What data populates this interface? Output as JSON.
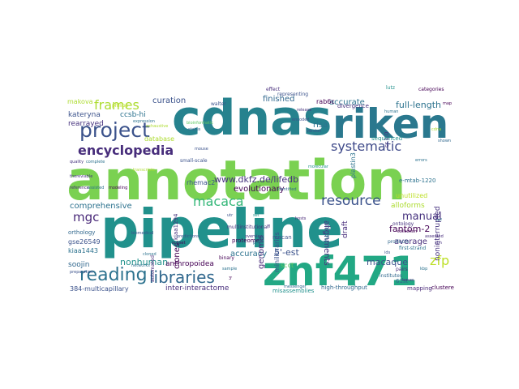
{
  "colors": {
    "background": "#ffffff",
    "palette": [
      "#440154",
      "#472d7b",
      "#3b528b",
      "#2c728e",
      "#21918c",
      "#28ae80",
      "#5ec962",
      "#addc30",
      "#fde725"
    ]
  },
  "words": [
    {
      "text": "annotation",
      "color": "#7ad151"
    },
    {
      "text": "pipeline",
      "color": "#21918c"
    },
    {
      "text": "cdnas",
      "color": "#26828e"
    },
    {
      "text": "riken",
      "color": "#2a788e"
    },
    {
      "text": "znf471",
      "color": "#22a884"
    },
    {
      "text": "project",
      "color": "#3b528b"
    },
    {
      "text": "reading",
      "color": "#2c728e"
    },
    {
      "text": "libraries",
      "color": "#31688e"
    },
    {
      "text": "encyclopedia",
      "color": "#472d7b"
    },
    {
      "text": "systematic",
      "color": "#3e4989"
    },
    {
      "text": "frames",
      "color": "#addc30"
    },
    {
      "text": "macaca",
      "color": "#35b779"
    },
    {
      "text": "resource",
      "color": "#3b528b"
    },
    {
      "text": "manual",
      "color": "#46327e"
    },
    {
      "text": "mgc",
      "color": "#482878"
    },
    {
      "text": "zfp",
      "color": "#bddf26"
    },
    {
      "text": "www.dkfz.de/lifedb",
      "color": "#46327e"
    },
    {
      "text": "full-length",
      "color": "#2c728e"
    },
    {
      "text": "curation",
      "color": "#3b528b"
    },
    {
      "text": "finished",
      "color": "#31688e"
    },
    {
      "text": "accurate",
      "color": "#2c728e"
    },
    {
      "text": "evolutionary",
      "color": "#440154"
    },
    {
      "text": "comprehensive",
      "color": "#2c728e"
    },
    {
      "text": "fantom-2",
      "color": "#440154"
    },
    {
      "text": "macaque",
      "color": "#3b528b"
    },
    {
      "text": "average",
      "color": "#472d7b"
    },
    {
      "text": "nonhuman",
      "color": "#21918c"
    },
    {
      "text": "accuracy",
      "color": "#2c728e"
    },
    {
      "text": "5'-est",
      "color": "#3b528b"
    },
    {
      "text": "alignments",
      "color": "#46327e"
    },
    {
      "text": "risa",
      "color": "#2c728e"
    },
    {
      "text": "anthropoidea",
      "color": "#440154"
    },
    {
      "text": "inter-interactome",
      "color": "#472d7b"
    },
    {
      "text": "soojin",
      "color": "#31688e"
    },
    {
      "text": "kateryna",
      "color": "#3b528b"
    },
    {
      "text": "alloforms",
      "color": "#addc30"
    },
    {
      "text": "clones",
      "color": "#440154"
    },
    {
      "text": "genome",
      "color": "#482878"
    },
    {
      "text": "minilibraries",
      "color": "#3b528b"
    },
    {
      "text": "draft",
      "color": "#472d7b"
    },
    {
      "text": "rhesus",
      "color": "#2c728e"
    },
    {
      "text": "noninterrupted",
      "color": "#46327e"
    },
    {
      "text": "rhemac2",
      "color": "#3b528b"
    },
    {
      "text": "ccsb-hi",
      "color": "#2c728e"
    },
    {
      "text": "rearrayed",
      "color": "#46327e"
    },
    {
      "text": "makova",
      "color": "#addc30"
    },
    {
      "text": "gse26549",
      "color": "#3b528b"
    },
    {
      "text": "kiaa1443",
      "color": "#2c728e"
    },
    {
      "text": "orthology",
      "color": "#31688e"
    },
    {
      "text": "384-multicapillary",
      "color": "#3b528b"
    },
    {
      "text": "61st",
      "color": "#31688e"
    },
    {
      "text": "high-throughput",
      "color": "#31688e"
    },
    {
      "text": "misassemblies",
      "color": "#21918c"
    },
    {
      "text": "clustered",
      "color": "#440154"
    },
    {
      "text": "mapping",
      "color": "#482878"
    },
    {
      "text": "rab6c",
      "color": "#440154"
    },
    {
      "text": "divergence",
      "color": "#46327e"
    },
    {
      "text": "database",
      "color": "#addc30"
    },
    {
      "text": "plastin3",
      "color": "#2c728e"
    },
    {
      "text": "sequenced",
      "color": "#21918c"
    },
    {
      "text": "unutilized",
      "color": "#bddf26"
    },
    {
      "text": "scct",
      "color": "#5ec962"
    },
    {
      "text": "macan",
      "color": "#3b528b"
    },
    {
      "text": "kiaa1294",
      "color": "#46327e"
    },
    {
      "text": "proteome",
      "color": "#440154"
    },
    {
      "text": "e-mtab-1220",
      "color": "#2c728e"
    },
    {
      "text": "cr.1.0",
      "color": "#46327e"
    },
    {
      "text": "multiinstitutional",
      "color": "#46327e"
    },
    {
      "text": "philipp",
      "color": "#bddf26"
    },
    {
      "text": "small-scale",
      "color": "#3b528b"
    },
    {
      "text": "institutes",
      "color": "#31688e"
    },
    {
      "text": "pairs",
      "color": "#472d7b"
    },
    {
      "text": "automated",
      "color": "#482878"
    },
    {
      "text": "products",
      "color": "#31688e"
    },
    {
      "text": "first-strand",
      "color": "#2c728e"
    },
    {
      "text": "ontology",
      "color": "#46327e"
    },
    {
      "text": "categories",
      "color": "#440154"
    },
    {
      "text": "lutz",
      "color": "#21918c"
    },
    {
      "text": "walter",
      "color": "#3b528b"
    },
    {
      "text": "effect",
      "color": "#472d7b"
    },
    {
      "text": "representing",
      "color": "#3b528b"
    },
    {
      "text": "binary",
      "color": "#440154"
    },
    {
      "text": "networks",
      "color": "#2c728e"
    },
    {
      "text": "messenger",
      "color": "#31688e"
    },
    {
      "text": "predictions",
      "color": "#3b528b"
    },
    {
      "text": "quality",
      "color": "#46327e"
    },
    {
      "text": "complete",
      "color": "#2c728e"
    },
    {
      "text": "thereviable",
      "color": "#46327e"
    },
    {
      "text": "preparation",
      "color": "#3b528b"
    },
    {
      "text": "reference",
      "color": "#482878"
    },
    {
      "text": "assisted",
      "color": "#2c728e"
    },
    {
      "text": "modeling",
      "color": "#440154"
    },
    {
      "text": "shown",
      "color": "#31688e"
    },
    {
      "text": "bioinformatic",
      "color": "#5ec962"
    },
    {
      "text": "version",
      "color": "#3b528b"
    },
    {
      "text": "errors",
      "color": "#2c728e"
    },
    {
      "text": "release",
      "color": "#46327e"
    },
    {
      "text": "subset",
      "color": "#440154"
    },
    {
      "text": "exhaustive",
      "color": "#addc30"
    },
    {
      "text": "expression",
      "color": "#2c728e"
    },
    {
      "text": "molecular",
      "color": "#21918c"
    },
    {
      "text": "encoded",
      "color": "#3b528b"
    },
    {
      "text": "transcripts",
      "color": "#addc30"
    },
    {
      "text": "status",
      "color": "#31688e"
    },
    {
      "text": "overview",
      "color": "#46327e"
    },
    {
      "text": "collection",
      "color": "#440154"
    },
    {
      "text": "sample",
      "color": "#2c728e"
    },
    {
      "text": "assessed",
      "color": "#472d7b"
    },
    {
      "text": "biomedical",
      "color": "#3b528b"
    },
    {
      "text": "cloned",
      "color": "#2c728e"
    },
    {
      "text": "bases",
      "color": "#46327e"
    },
    {
      "text": "identified",
      "color": "#31688e"
    },
    {
      "text": "hosts",
      "color": "#482878"
    },
    {
      "text": "orf",
      "color": "#2c728e"
    },
    {
      "text": "utr",
      "color": "#3b528b"
    },
    {
      "text": "map",
      "color": "#440154"
    },
    {
      "text": "fl",
      "color": "#46327e"
    },
    {
      "text": "set",
      "color": "#21918c"
    },
    {
      "text": "ids",
      "color": "#3b528b"
    },
    {
      "text": "sbh",
      "color": "#46327e"
    },
    {
      "text": "kbp",
      "color": "#2c728e"
    },
    {
      "text": "3'",
      "color": "#440154"
    },
    {
      "text": "pi",
      "color": "#31688e"
    },
    {
      "text": "cdna",
      "color": "#addc30"
    },
    {
      "text": "human",
      "color": "#2c728e"
    },
    {
      "text": "mouse",
      "color": "#3b528b"
    }
  ]
}
